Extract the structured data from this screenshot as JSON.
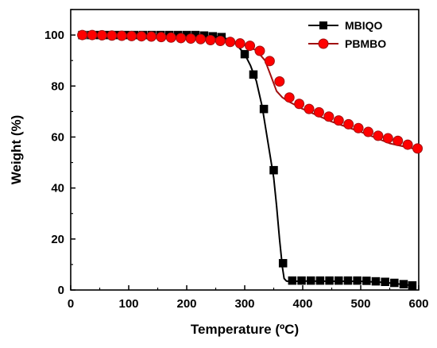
{
  "chart_data": {
    "type": "line",
    "xlabel": "Temperature (ºC)",
    "ylabel": "Weight (%)",
    "xlim": [
      0,
      600
    ],
    "ylim": [
      0,
      110
    ],
    "xticks": [
      0,
      100,
      200,
      300,
      400,
      500,
      600
    ],
    "yticks": [
      0,
      20,
      40,
      60,
      80,
      100
    ],
    "legend_position": "top-right",
    "grid": false,
    "series": [
      {
        "name": "MBIQO",
        "color": "#000000",
        "marker": "square",
        "marker_fill": "#000000",
        "curve_x": [
          20,
          150,
          250,
          270,
          285,
          300,
          310,
          320,
          330,
          340,
          350,
          355,
          360,
          365,
          368,
          372,
          376,
          380,
          400,
          500,
          540,
          560,
          580,
          590
        ],
        "curve_y": [
          100,
          100,
          99.5,
          98.5,
          96.5,
          92.5,
          88,
          82,
          72,
          58,
          44,
          33,
          20,
          9,
          4.5,
          3.5,
          3.4,
          3.4,
          3.5,
          3.4,
          3.0,
          2.5,
          2.0,
          1.8
        ],
        "markers_x": [
          20,
          35,
          50,
          65,
          80,
          95,
          110,
          125,
          140,
          155,
          170,
          185,
          200,
          215,
          230,
          245,
          260,
          300,
          315,
          333,
          350,
          366,
          382,
          398,
          414,
          430,
          446,
          462,
          478,
          494,
          510,
          526,
          542,
          558,
          574,
          589
        ],
        "markers_y": [
          100,
          100,
          100,
          100,
          100,
          100,
          100,
          100,
          100,
          100,
          100,
          100,
          100,
          100,
          99.8,
          99.5,
          99.2,
          92.5,
          84.5,
          71,
          47,
          10.5,
          3.7,
          3.7,
          3.7,
          3.7,
          3.7,
          3.7,
          3.7,
          3.7,
          3.6,
          3.4,
          3.2,
          2.8,
          2.3,
          1.8
        ]
      },
      {
        "name": "PBMBO",
        "color": "#a01010",
        "marker": "circle",
        "marker_fill": "#ff0000",
        "curve_x": [
          20,
          150,
          250,
          280,
          300,
          320,
          335,
          345,
          355,
          365,
          375,
          400,
          450,
          500,
          550,
          600
        ],
        "curve_y": [
          100,
          99.5,
          98.5,
          97.5,
          96,
          94,
          90,
          84,
          78,
          75.5,
          74,
          71,
          66,
          62,
          57.5,
          55
        ],
        "markers_x": [
          20,
          37,
          54,
          71,
          88,
          105,
          122,
          139,
          156,
          173,
          190,
          207,
          224,
          241,
          258,
          275,
          292,
          309,
          326,
          343,
          360,
          377,
          394,
          411,
          428,
          445,
          462,
          479,
          496,
          513,
          530,
          547,
          564,
          581,
          598
        ],
        "markers_y": [
          100,
          100,
          99.9,
          99.8,
          99.7,
          99.6,
          99.5,
          99.4,
          99.2,
          99.0,
          98.8,
          98.6,
          98.4,
          98.0,
          97.7,
          97.3,
          96.7,
          95.8,
          93.8,
          89.8,
          81.8,
          75.5,
          73.0,
          71.0,
          69.7,
          68.0,
          66.5,
          65.0,
          63.5,
          62.0,
          60.5,
          59.5,
          58.5,
          57.0,
          55.5
        ]
      }
    ]
  }
}
